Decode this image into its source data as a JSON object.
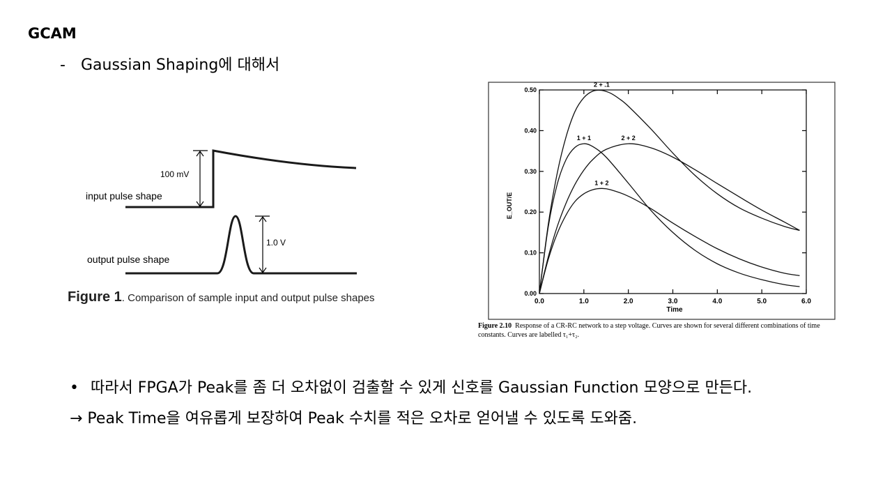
{
  "slide": {
    "title": "GCAM",
    "subtitle_dash": "-",
    "subtitle": "Gaussian Shaping에 대해서",
    "bullet_symbol": "•",
    "bullet1": "따라서 FPGA가 Peak를 좀 더 오차없이 검출할 수 있게 신호를 Gaussian Function 모양으로 만든다.",
    "bullet2": "→ Peak Time을 여유롭게 보장하여 Peak 수치를 적은 오차로 얻어낼 수 있도록 도와줌."
  },
  "figure1": {
    "input_label": "input pulse shape",
    "output_label": "output pulse shape",
    "input_amplitude": "100 mV",
    "output_amplitude": "1.0 V",
    "caption_bold": "Figure 1",
    "caption_text": ". Comparison of sample input and output pulse shapes"
  },
  "chart_data": {
    "type": "line",
    "xlabel": "Time",
    "ylabel": "E_OUT/E",
    "xlim": [
      0,
      6
    ],
    "ylim": [
      0,
      0.5
    ],
    "xticks": [
      "0.0",
      "1.0",
      "2.0",
      "3.0",
      "4.0",
      "5.0",
      "6.0"
    ],
    "yticks": [
      "0.00",
      "0.10",
      "0.20",
      "0.30",
      "0.40",
      "0.50"
    ],
    "series": [
      {
        "name": "2 + .1",
        "x": [
          0,
          0.2,
          0.4,
          0.6,
          0.8,
          1.0,
          1.2,
          1.4,
          1.6,
          1.8,
          2.0,
          2.5,
          3.0,
          3.5,
          4.0,
          4.5,
          5.0,
          5.5,
          5.85
        ],
        "y": [
          0,
          0.17,
          0.295,
          0.385,
          0.447,
          0.481,
          0.497,
          0.499,
          0.492,
          0.478,
          0.46,
          0.405,
          0.345,
          0.29,
          0.245,
          0.21,
          0.185,
          0.165,
          0.155
        ]
      },
      {
        "name": "1 + 1",
        "x": [
          0,
          0.2,
          0.4,
          0.6,
          0.8,
          1.0,
          1.2,
          1.5,
          2.0,
          2.5,
          3.0,
          3.5,
          4.0,
          4.5,
          5.0,
          5.5,
          5.85
        ],
        "y": [
          0,
          0.164,
          0.268,
          0.329,
          0.359,
          0.368,
          0.361,
          0.335,
          0.271,
          0.205,
          0.15,
          0.106,
          0.073,
          0.05,
          0.034,
          0.022,
          0.017
        ]
      },
      {
        "name": "2 + 2",
        "x": [
          0,
          0.2,
          0.4,
          0.6,
          0.8,
          1.0,
          1.2,
          1.5,
          2.0,
          2.5,
          3.0,
          3.5,
          4.0,
          4.5,
          5.0,
          5.5,
          5.85
        ],
        "y": [
          0,
          0.09,
          0.164,
          0.222,
          0.268,
          0.303,
          0.329,
          0.354,
          0.368,
          0.358,
          0.335,
          0.304,
          0.27,
          0.237,
          0.205,
          0.176,
          0.155
        ]
      },
      {
        "name": "1 + 2",
        "x": [
          0,
          0.2,
          0.4,
          0.6,
          0.8,
          1.0,
          1.2,
          1.4,
          1.6,
          2.0,
          2.5,
          3.0,
          3.5,
          4.0,
          4.5,
          5.0,
          5.5,
          5.85
        ],
        "y": [
          0,
          0.084,
          0.147,
          0.193,
          0.226,
          0.245,
          0.255,
          0.258,
          0.255,
          0.239,
          0.209,
          0.173,
          0.14,
          0.11,
          0.085,
          0.065,
          0.05,
          0.044
        ]
      }
    ],
    "caption_bold": "Figure 2.10",
    "caption_text": "Response of a CR-RC network to a step voltage. Curves are shown for several different combinations of time constants. Curves are labelled τ₁+τ₂."
  }
}
